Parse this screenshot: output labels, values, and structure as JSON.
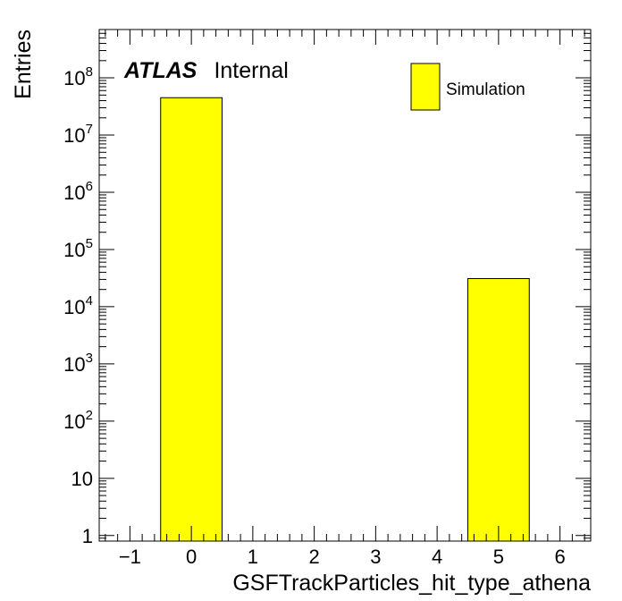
{
  "chart_data": {
    "type": "bar",
    "title": "",
    "xlabel": "GSFTrackParticles_hit_type_athena",
    "ylabel": "Entries",
    "xlim": [
      -1.5,
      6.5
    ],
    "ylim": [
      0.8,
      700000000
    ],
    "y_scale": "log",
    "x_ticks": [
      {
        "value": -1,
        "label": "−1"
      },
      {
        "value": 0,
        "label": "0"
      },
      {
        "value": 1,
        "label": "1"
      },
      {
        "value": 2,
        "label": "2"
      },
      {
        "value": 3,
        "label": "3"
      },
      {
        "value": 4,
        "label": "4"
      },
      {
        "value": 5,
        "label": "5"
      },
      {
        "value": 6,
        "label": "6"
      }
    ],
    "y_ticks": [
      {
        "value": 1,
        "base": "1",
        "exp": ""
      },
      {
        "value": 10,
        "base": "10",
        "exp": ""
      },
      {
        "value": 100,
        "base": "10",
        "exp": "2"
      },
      {
        "value": 1000,
        "base": "10",
        "exp": "3"
      },
      {
        "value": 10000,
        "base": "10",
        "exp": "4"
      },
      {
        "value": 100000,
        "base": "10",
        "exp": "5"
      },
      {
        "value": 1000000,
        "base": "10",
        "exp": "6"
      },
      {
        "value": 10000000,
        "base": "10",
        "exp": "7"
      },
      {
        "value": 100000000,
        "base": "10",
        "exp": "8"
      }
    ],
    "bins": [
      {
        "low": -0.5,
        "high": 0.5,
        "value": 45000000
      },
      {
        "low": 4.5,
        "high": 5.5,
        "value": 31000
      }
    ],
    "legend": {
      "entries": [
        "Simulation"
      ],
      "position": "top-right"
    },
    "fill_color": "#ffff00",
    "grid": false,
    "annotation": {
      "bold": "ATLAS",
      "normal": "Internal"
    }
  }
}
